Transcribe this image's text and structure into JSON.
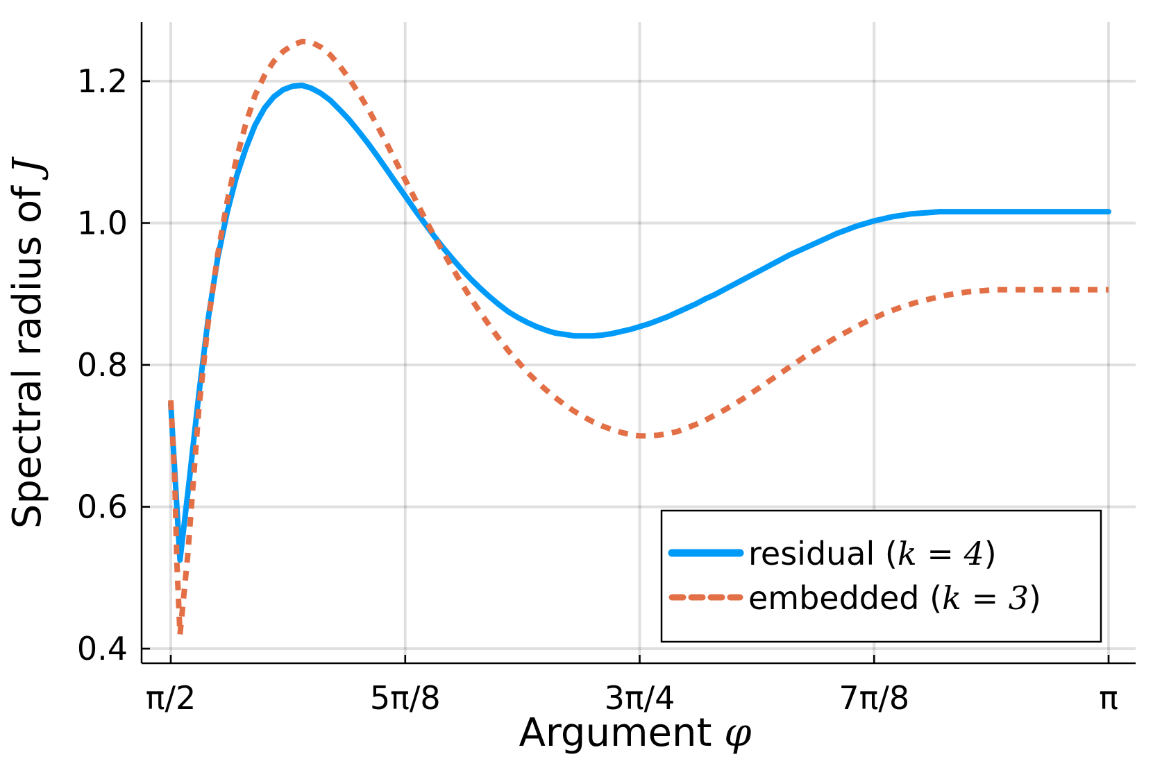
{
  "chart_data": {
    "type": "line",
    "xlabel": "Argument",
    "xlabel_symbol": "φ",
    "ylabel": "Spectral radius of",
    "ylabel_symbol": "J",
    "xlim": [
      1.5708,
      3.1416
    ],
    "ylim": [
      0.4,
      1.25
    ],
    "grid": true,
    "legend_position": "bottom-right",
    "x_ticks": [
      {
        "value": 1.5708,
        "label": "π/2"
      },
      {
        "value": 1.9635,
        "label": "5π/8"
      },
      {
        "value": 2.3562,
        "label": "3π/4"
      },
      {
        "value": 2.7489,
        "label": "7π/8"
      },
      {
        "value": 3.1416,
        "label": "π"
      }
    ],
    "y_ticks": [
      {
        "value": 0.4,
        "label": "0.4"
      },
      {
        "value": 0.6,
        "label": "0.6"
      },
      {
        "value": 0.8,
        "label": "0.8"
      },
      {
        "value": 1.0,
        "label": "1.0"
      },
      {
        "value": 1.2,
        "label": "1.2"
      }
    ],
    "series": [
      {
        "name": "residual",
        "name_math": "k = 4",
        "color": "#009af9",
        "style": "solid",
        "x": [
          1.5708,
          1.5863,
          1.6022,
          1.618,
          1.6335,
          1.6493,
          1.6652,
          1.6807,
          1.6965,
          1.712,
          1.7278,
          1.7433,
          1.7591,
          1.775,
          1.7909,
          1.8064,
          1.8222,
          1.838,
          1.8535,
          1.8693,
          1.8848,
          1.9007,
          1.9162,
          1.932,
          1.9476,
          1.9634,
          1.9792,
          1.995,
          2.0107,
          2.0264,
          2.0421,
          2.0578,
          2.0734,
          2.0892,
          2.1049,
          2.1206,
          2.1362,
          2.1519,
          2.1677,
          2.1833,
          2.199,
          2.2147,
          2.2305,
          2.2461,
          2.2618,
          2.2776,
          2.2932,
          2.309,
          2.3246,
          2.3403,
          2.3561,
          2.3717,
          2.3875,
          2.4031,
          2.4189,
          2.4346,
          2.4502,
          2.466,
          2.4817,
          2.4974,
          2.5131,
          2.5287,
          2.5445,
          2.5602,
          2.5759,
          2.5916,
          2.6072,
          2.623,
          2.6387,
          2.6544,
          2.6701,
          2.6858,
          2.7015,
          2.7172,
          2.7329,
          2.7486,
          2.7643,
          2.78,
          2.7957,
          2.8114,
          2.8271,
          2.8428,
          2.8585,
          2.8742,
          2.8899,
          2.9056,
          2.9213,
          2.937,
          2.9527,
          2.9684,
          2.9841,
          2.9998,
          3.0155,
          3.0312,
          3.0469,
          3.0626,
          3.0783,
          3.094,
          3.1097,
          3.1254,
          3.1416
        ],
        "y": [
          0.745,
          0.525,
          0.64,
          0.76,
          0.865,
          0.95,
          1.015,
          1.065,
          1.105,
          1.138,
          1.162,
          1.178,
          1.188,
          1.193,
          1.194,
          1.19,
          1.183,
          1.173,
          1.16,
          1.146,
          1.13,
          1.113,
          1.095,
          1.076,
          1.057,
          1.038,
          1.019,
          1.001,
          0.983,
          0.966,
          0.95,
          0.935,
          0.921,
          0.908,
          0.896,
          0.885,
          0.875,
          0.867,
          0.86,
          0.854,
          0.849,
          0.845,
          0.843,
          0.841,
          0.841,
          0.841,
          0.842,
          0.844,
          0.847,
          0.85,
          0.854,
          0.858,
          0.863,
          0.868,
          0.874,
          0.88,
          0.886,
          0.893,
          0.899,
          0.906,
          0.913,
          0.92,
          0.927,
          0.934,
          0.941,
          0.948,
          0.955,
          0.961,
          0.967,
          0.973,
          0.979,
          0.985,
          0.99,
          0.995,
          0.999,
          1.003,
          1.006,
          1.009,
          1.011,
          1.013,
          1.014,
          1.015,
          1.016,
          1.016,
          1.016,
          1.016,
          1.016,
          1.016,
          1.016,
          1.016,
          1.016,
          1.016,
          1.016,
          1.016,
          1.016,
          1.016,
          1.016,
          1.016,
          1.016,
          1.016,
          1.016
        ]
      },
      {
        "name": "embedded",
        "name_math": "k = 3",
        "color": "#e26f46",
        "style": "dashed",
        "x": [
          1.5708,
          1.5774,
          1.5812,
          1.5863,
          1.599,
          1.618,
          1.6335,
          1.6493,
          1.6652,
          1.6807,
          1.6965,
          1.712,
          1.7278,
          1.7433,
          1.7591,
          1.775,
          1.7909,
          1.8064,
          1.8222,
          1.838,
          1.8535,
          1.8693,
          1.8848,
          1.9007,
          1.9162,
          1.932,
          1.9476,
          1.9634,
          1.9792,
          1.995,
          2.0107,
          2.0264,
          2.0421,
          2.0578,
          2.0734,
          2.0892,
          2.1049,
          2.1206,
          2.1362,
          2.1519,
          2.1677,
          2.1833,
          2.199,
          2.2147,
          2.2305,
          2.2461,
          2.2618,
          2.2776,
          2.2932,
          2.309,
          2.3246,
          2.3403,
          2.3561,
          2.3717,
          2.3875,
          2.4031,
          2.4189,
          2.4346,
          2.4502,
          2.466,
          2.4817,
          2.4974,
          2.5131,
          2.5287,
          2.5445,
          2.5602,
          2.5759,
          2.5916,
          2.6072,
          2.623,
          2.6387,
          2.6544,
          2.6701,
          2.6858,
          2.7015,
          2.7172,
          2.7329,
          2.7486,
          2.7643,
          2.78,
          2.7957,
          2.8114,
          2.8271,
          2.8428,
          2.8585,
          2.8742,
          2.8899,
          2.9056,
          2.9213,
          2.937,
          2.9527,
          2.9684,
          2.9841,
          2.9998,
          3.0155,
          3.0312,
          3.0469,
          3.0626,
          3.0783,
          3.094,
          3.1097,
          3.1254,
          3.1416
        ],
        "y": [
          0.75,
          0.64,
          0.52,
          0.42,
          0.53,
          0.74,
          0.86,
          0.955,
          1.03,
          1.09,
          1.14,
          1.18,
          1.208,
          1.228,
          1.242,
          1.251,
          1.256,
          1.255,
          1.248,
          1.237,
          1.222,
          1.204,
          1.184,
          1.162,
          1.138,
          1.113,
          1.087,
          1.061,
          1.035,
          1.009,
          0.984,
          0.96,
          0.937,
          0.915,
          0.894,
          0.874,
          0.855,
          0.837,
          0.82,
          0.805,
          0.79,
          0.777,
          0.765,
          0.754,
          0.744,
          0.735,
          0.727,
          0.72,
          0.714,
          0.709,
          0.705,
          0.702,
          0.7,
          0.7,
          0.701,
          0.703,
          0.706,
          0.711,
          0.716,
          0.722,
          0.729,
          0.736,
          0.744,
          0.752,
          0.761,
          0.77,
          0.779,
          0.788,
          0.797,
          0.806,
          0.815,
          0.823,
          0.831,
          0.839,
          0.846,
          0.853,
          0.86,
          0.866,
          0.872,
          0.877,
          0.882,
          0.886,
          0.89,
          0.893,
          0.896,
          0.899,
          0.901,
          0.903,
          0.904,
          0.905,
          0.906,
          0.906,
          0.906,
          0.906,
          0.906,
          0.906,
          0.906,
          0.906,
          0.906,
          0.906,
          0.906,
          0.906,
          0.906
        ]
      }
    ]
  }
}
